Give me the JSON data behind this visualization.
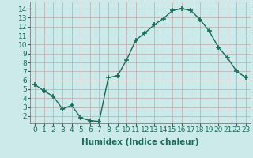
{
  "title": "",
  "xlabel": "Humidex (Indice chaleur)",
  "x": [
    0,
    1,
    2,
    3,
    4,
    5,
    6,
    7,
    8,
    9,
    10,
    11,
    12,
    13,
    14,
    15,
    16,
    17,
    18,
    19,
    20,
    21,
    22,
    23
  ],
  "y": [
    5.5,
    4.8,
    4.2,
    2.8,
    3.2,
    1.8,
    1.5,
    1.4,
    6.3,
    6.5,
    8.3,
    10.5,
    11.3,
    12.2,
    12.9,
    13.8,
    14.0,
    13.8,
    12.8,
    11.5,
    9.7,
    8.5,
    7.0,
    6.3
  ],
  "line_color": "#1a6b5a",
  "marker": "+",
  "marker_size": 4,
  "marker_lw": 1.2,
  "bg_color": "#cceaea",
  "grid_color": "#c0a8a8",
  "ylim": [
    1.2,
    14.8
  ],
  "xlim": [
    -0.5,
    23.5
  ],
  "yticks": [
    2,
    3,
    4,
    5,
    6,
    7,
    8,
    9,
    10,
    11,
    12,
    13,
    14
  ],
  "xticks": [
    0,
    1,
    2,
    3,
    4,
    5,
    6,
    7,
    8,
    9,
    10,
    11,
    12,
    13,
    14,
    15,
    16,
    17,
    18,
    19,
    20,
    21,
    22,
    23
  ],
  "tick_fontsize": 6.5,
  "xlabel_fontsize": 7.5,
  "linewidth": 1.0
}
